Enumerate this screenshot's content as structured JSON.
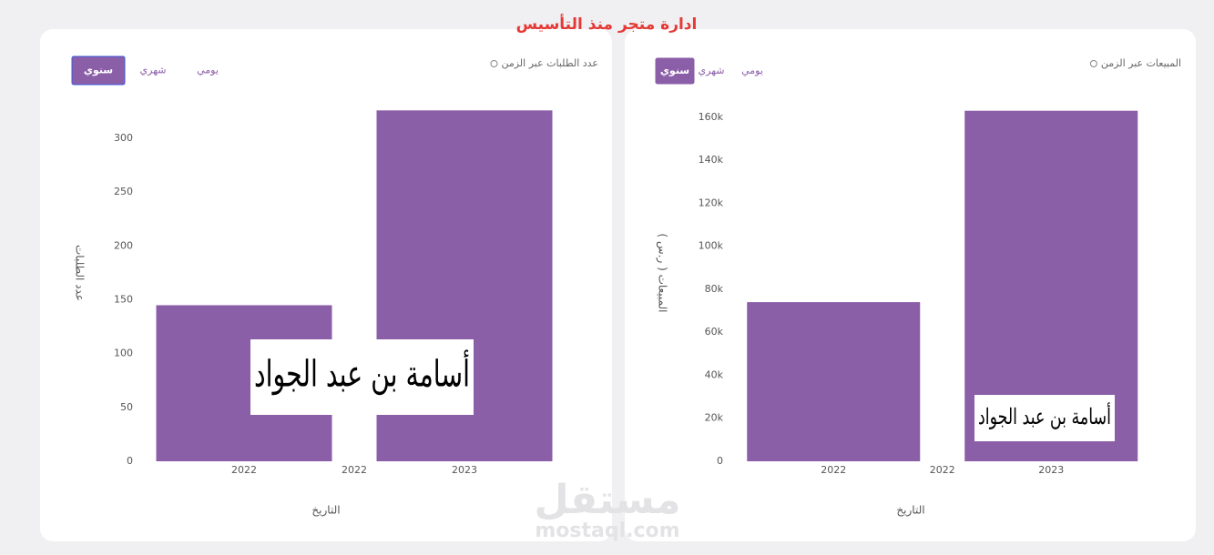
{
  "title": "ادارة متجر منذ التأسيس",
  "tabs": [
    "سنوي",
    "شهري",
    "يومي"
  ],
  "active_tab": 0,
  "watermark": "أسامة بن عبد الجواد",
  "site_watermark": [
    "مستقل",
    "mostaql.com"
  ],
  "chart_data": [
    {
      "type": "bar",
      "title": "عدد الطلبات عبر الزمن",
      "ylabel": "عدد الطلبات",
      "xlabel": "التاريخ",
      "categories": [
        "2022",
        "2022",
        "2023"
      ],
      "values": [
        145,
        null,
        326
      ],
      "color": "#8b5ea8",
      "ylim": [
        0,
        330
      ],
      "yticks": [
        0,
        50,
        100,
        150,
        200,
        250,
        300
      ]
    },
    {
      "type": "bar",
      "title": "المبيعات عبر الزمن",
      "ylabel": "المبيعات ( ر.س )",
      "xlabel": "التاريخ",
      "categories": [
        "2022",
        "2022",
        "2023"
      ],
      "values": [
        74000,
        null,
        163000
      ],
      "color": "#8b5ea8",
      "ylim": [
        0,
        165000
      ],
      "yticks": [
        0,
        {
          "value": 20000,
          "label": "20k"
        },
        {
          "value": 40000,
          "label": "40k"
        },
        {
          "value": 60000,
          "label": "60k"
        },
        {
          "value": 80000,
          "label": "80k"
        },
        {
          "value": 100000,
          "label": "100k"
        },
        {
          "value": 120000,
          "label": "120k"
        },
        {
          "value": 140000,
          "label": "140k"
        },
        {
          "value": 160000,
          "label": "160k"
        }
      ]
    }
  ]
}
